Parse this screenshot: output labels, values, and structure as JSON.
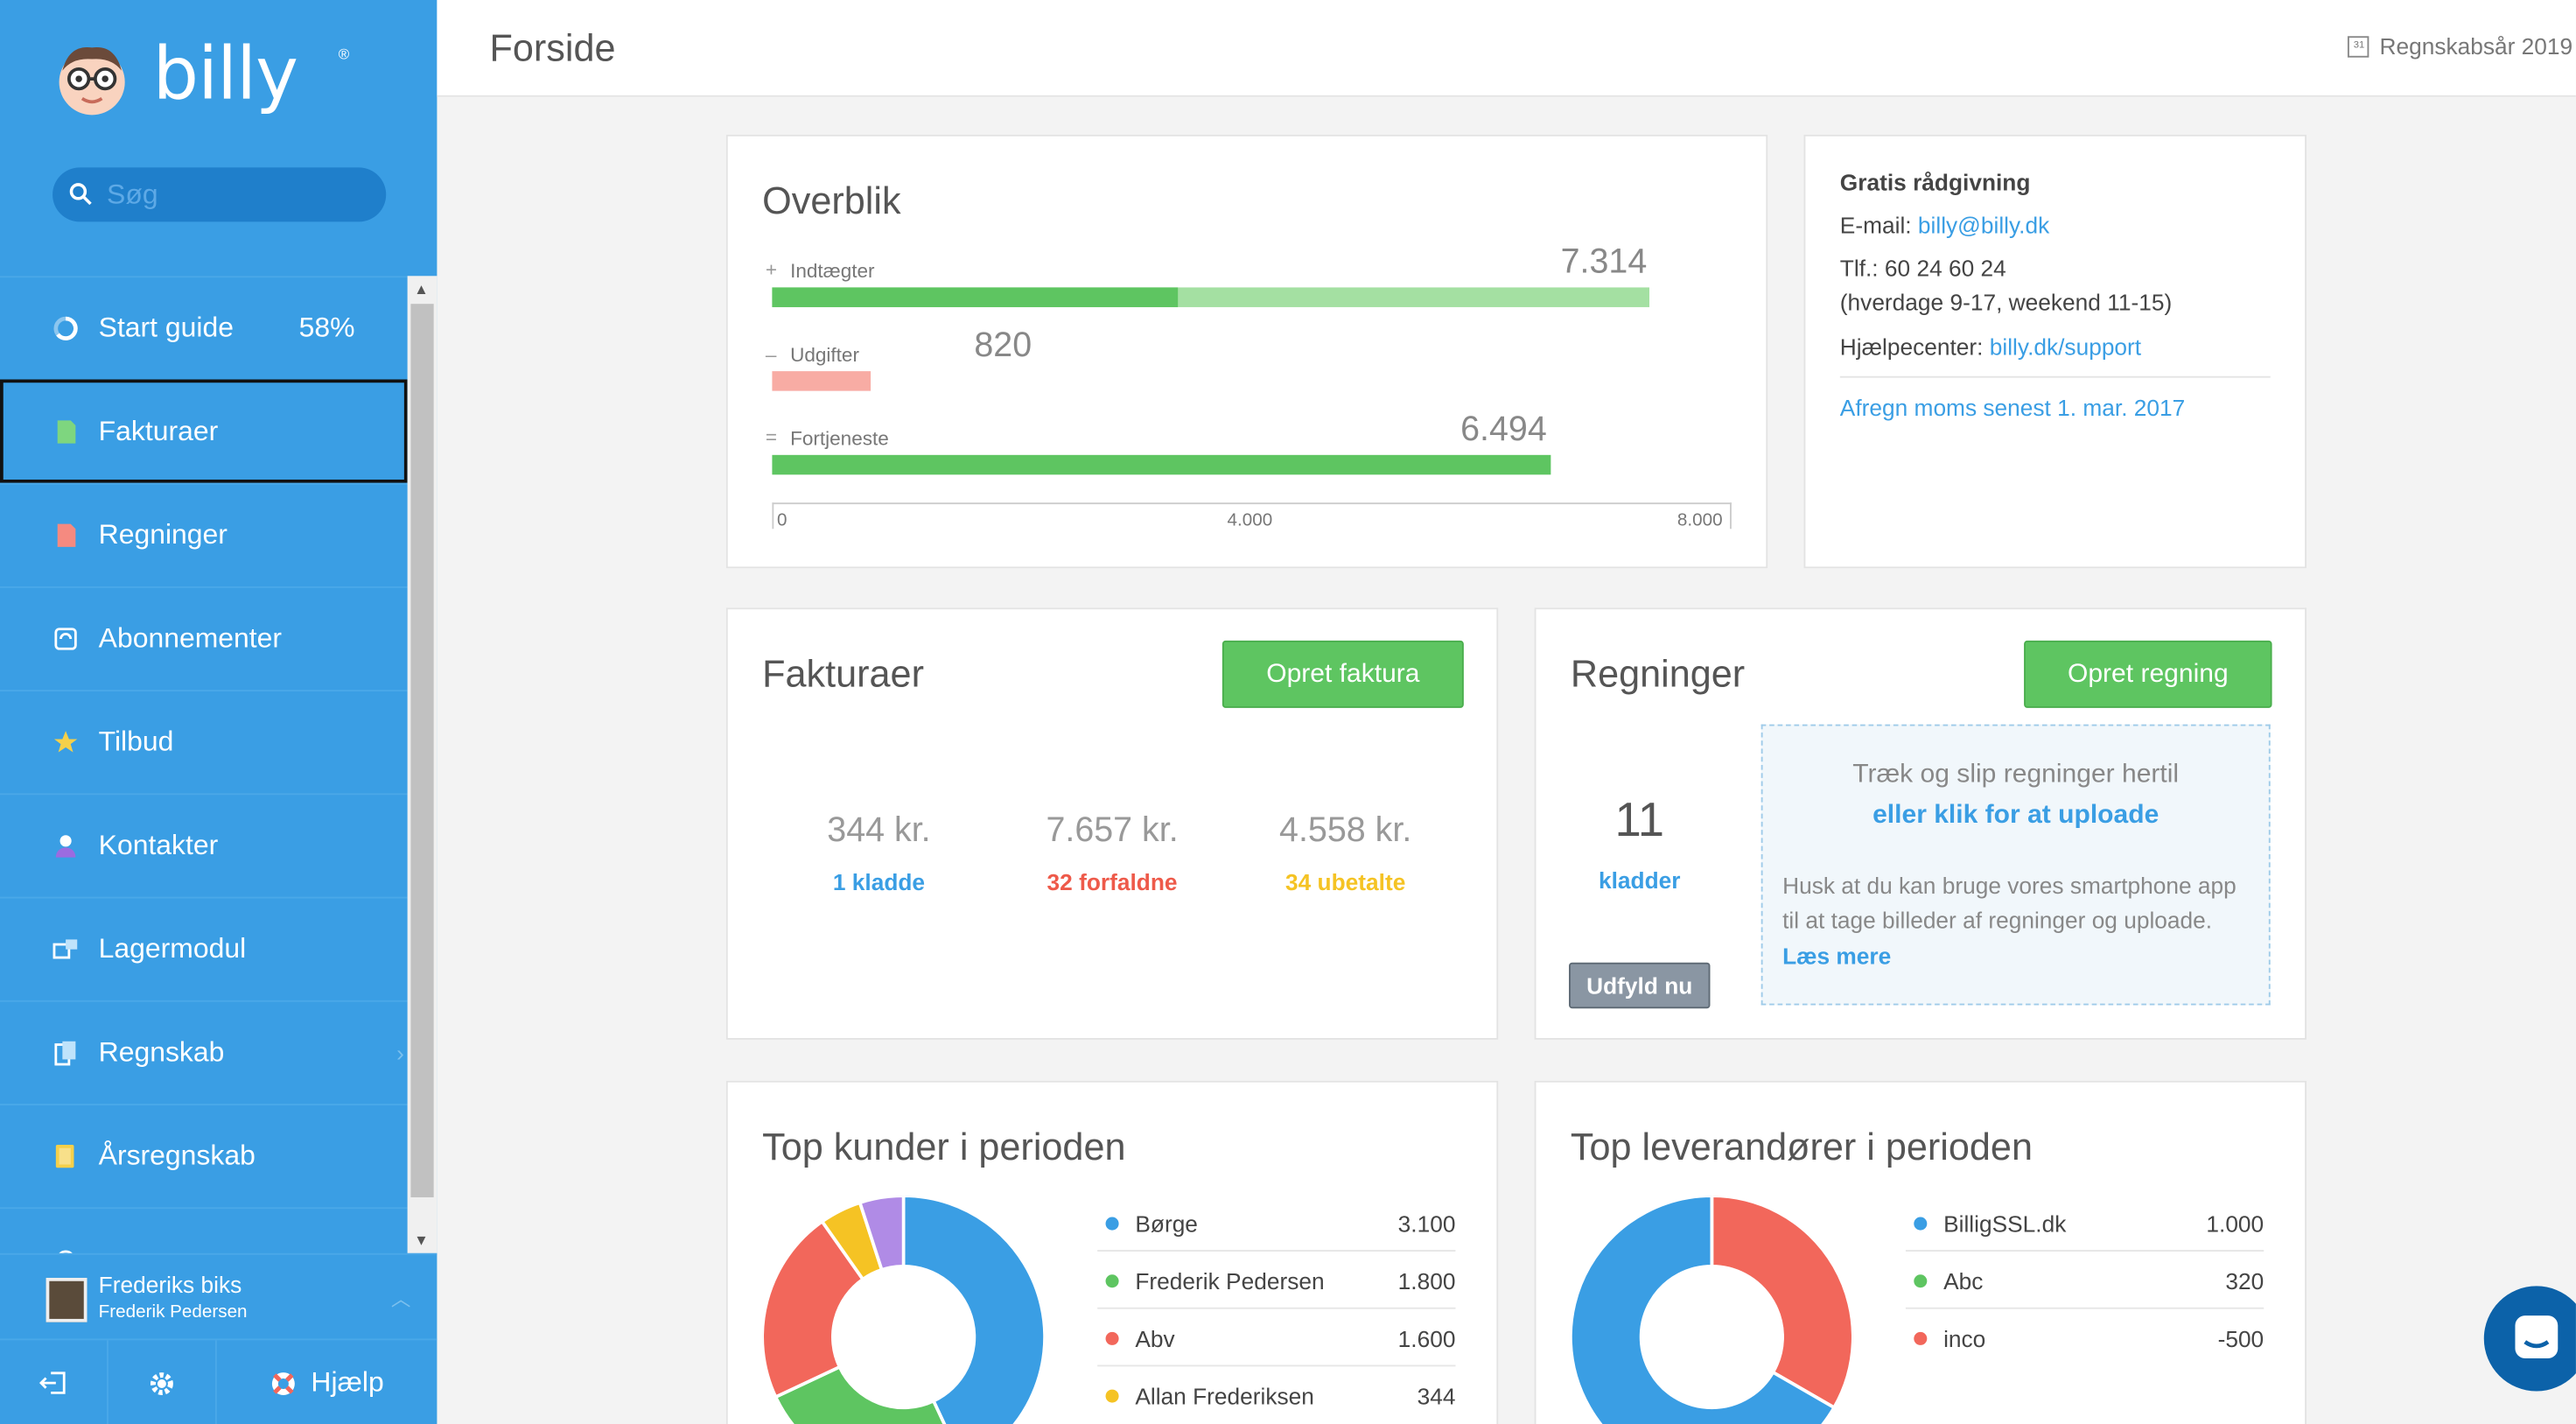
{
  "sidebar": {
    "logo_text": "billy",
    "logo_reg": "®",
    "search_placeholder": "Søg",
    "items": [
      {
        "label": "Start guide",
        "badge": "58%"
      },
      {
        "label": "Fakturaer"
      },
      {
        "label": "Regninger"
      },
      {
        "label": "Abonnementer"
      },
      {
        "label": "Tilbud"
      },
      {
        "label": "Kontakter"
      },
      {
        "label": "Lagermodul"
      },
      {
        "label": "Regnskab"
      },
      {
        "label": "Årsregnskab"
      }
    ],
    "user": {
      "company": "Frederiks biks",
      "name": "Frederik Pedersen"
    },
    "bottom": {
      "help_label": "Hjælp"
    }
  },
  "header": {
    "title": "Forside",
    "fiscal_year": "Regnskabsår 2019"
  },
  "overview": {
    "title": "Overblik",
    "rows": [
      {
        "sym": "+",
        "label": "Indtægter",
        "value": "7.314"
      },
      {
        "sym": "–",
        "label": "Udgifter",
        "value": "820"
      },
      {
        "sym": "=",
        "label": "Fortjeneste",
        "value": "6.494"
      }
    ],
    "ticks": [
      "0",
      "4.000",
      "8.000"
    ]
  },
  "info": {
    "heading": "Gratis rådgivning",
    "email_label": "E-mail: ",
    "email": "billy@billy.dk",
    "phone": "Tlf.: 60 24 60 24",
    "hours": "(hverdage 9-17, weekend 11-15)",
    "help_label": "Hjælpecenter: ",
    "help_link": "billy.dk/support",
    "vat_link": "Afregn moms senest 1. mar. 2017"
  },
  "invoices": {
    "title": "Fakturaer",
    "button": "Opret faktura",
    "metrics": [
      {
        "value": "344 kr.",
        "label": "1 kladde",
        "color": "#3a9ee4"
      },
      {
        "value": "7.657 kr.",
        "label": "32 forfaldne",
        "color": "#ee5a4a"
      },
      {
        "value": "4.558 kr.",
        "label": "34 ubetalte",
        "color": "#f5c324"
      }
    ]
  },
  "bills": {
    "title": "Regninger",
    "button": "Opret regning",
    "count": "11",
    "count_label": "kladder",
    "fill_button": "Udfyld nu",
    "upload_line1": "Træk og slip regninger hertil",
    "upload_line2": "eller klik for at uploade",
    "upload_hint1": "Husk at du kan bruge vores smartphone app",
    "upload_hint2": "til at tage billeder af regninger og uploade.",
    "read_more": "Læs mere"
  },
  "top_customers": {
    "title": "Top kunder i perioden",
    "rows": [
      {
        "name": "Børge",
        "value": "3.100",
        "color": "#3a9ee4"
      },
      {
        "name": "Frederik Pedersen",
        "value": "1.800",
        "color": "#5ec561"
      },
      {
        "name": "Abv",
        "value": "1.600",
        "color": "#f2675b"
      },
      {
        "name": "Allan Frederiksen",
        "value": "344",
        "color": "#f5c324"
      }
    ]
  },
  "top_suppliers": {
    "title": "Top leverandører i perioden",
    "rows": [
      {
        "name": "BilligSSL.dk",
        "value": "1.000",
        "color": "#3a9ee4"
      },
      {
        "name": "Abc",
        "value": "320",
        "color": "#5ec561"
      },
      {
        "name": "inco",
        "value": "-500",
        "color": "#f2675b"
      }
    ]
  },
  "colors": {
    "brand": "#3a9ee4",
    "green": "#5ec561",
    "red": "#f2675b",
    "yellow": "#f5c324",
    "purple": "#b08be6"
  }
}
